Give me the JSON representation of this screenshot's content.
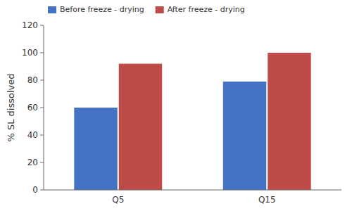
{
  "chart_data": {
    "type": "bar",
    "categories": [
      "Q5",
      "Q15"
    ],
    "series": [
      {
        "name": "Before freeze - drying",
        "color": "#4472C4",
        "values": [
          60,
          79
        ]
      },
      {
        "name": "After freeze - drying",
        "color": "#BE4B48",
        "values": [
          92,
          100
        ]
      }
    ],
    "ylabel": "% SL dissolved",
    "ylim": [
      0,
      120
    ],
    "yticks": [
      0,
      20,
      40,
      60,
      80,
      100,
      120
    ],
    "grid": false,
    "legend": "upper left"
  }
}
